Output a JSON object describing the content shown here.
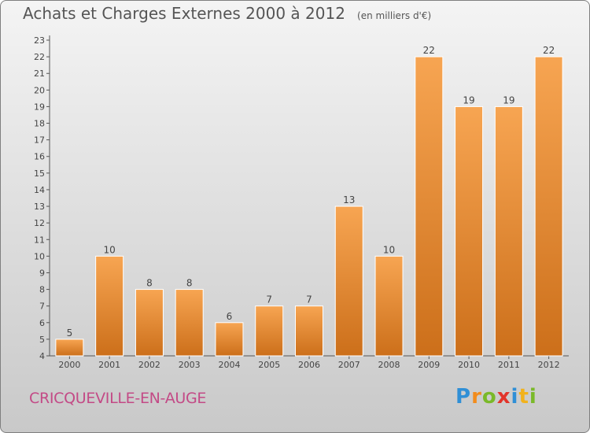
{
  "header": {
    "title": "Achats et Charges Externes 2000 à 2012",
    "unit": "(en milliers d'€)"
  },
  "footer": {
    "town": "CRICQUEVILLE-EN-AUGE",
    "logo_text": "Proxiti"
  },
  "colors": {
    "bar_light": "#f7a552",
    "bar_dark": "#cc6f1a",
    "town": "#c34a86"
  },
  "chart_data": {
    "type": "bar",
    "title": "Achats et Charges Externes 2000 à 2012",
    "subtitle": "(en milliers d'€)",
    "xlabel": "",
    "ylabel": "",
    "categories": [
      "2000",
      "2001",
      "2002",
      "2003",
      "2004",
      "2005",
      "2006",
      "2007",
      "2008",
      "2009",
      "2010",
      "2011",
      "2012"
    ],
    "values": [
      5,
      10,
      8,
      8,
      6,
      7,
      7,
      13,
      10,
      22,
      19,
      19,
      22
    ],
    "ylim": [
      4,
      23
    ],
    "yticks": [
      4,
      5,
      6,
      7,
      8,
      9,
      10,
      11,
      12,
      13,
      14,
      15,
      16,
      17,
      18,
      19,
      20,
      21,
      22,
      23
    ],
    "grid": false,
    "data_labels": true
  }
}
